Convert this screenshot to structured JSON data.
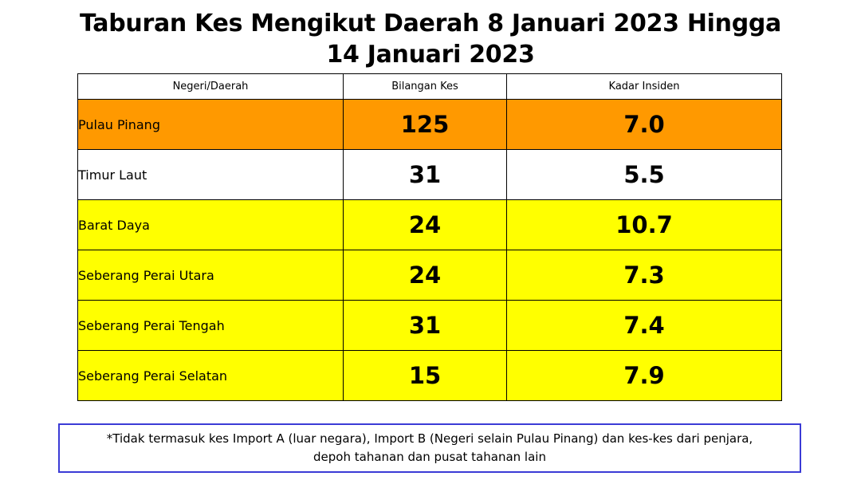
{
  "title": {
    "line1": "Taburan Kes Mengikut Daerah 8 Januari 2023 Hingga",
    "line2": "14 Januari 2023"
  },
  "table": {
    "headers": [
      "Negeri/Daerah",
      "Bilangan Kes",
      "Kadar Insiden"
    ],
    "rows": [
      {
        "name": "Pulau Pinang",
        "cases": "125",
        "rate": "7.0",
        "highlight": "#ff9900"
      },
      {
        "name": "Timur Laut",
        "cases": "31",
        "rate": "5.5",
        "highlight": "#ffffff"
      },
      {
        "name": "Barat Daya",
        "cases": "24",
        "rate": "10.7",
        "highlight": "#ffff00"
      },
      {
        "name": "Seberang Perai Utara",
        "cases": "24",
        "rate": "7.3",
        "highlight": "#ffff00"
      },
      {
        "name": "Seberang Perai Tengah",
        "cases": "31",
        "rate": "7.4",
        "highlight": "#ffff00"
      },
      {
        "name": "Seberang Perai Selatan",
        "cases": "15",
        "rate": "7.9",
        "highlight": "#ffff00"
      }
    ]
  },
  "note": {
    "line1": "*Tidak termasuk kes Import A (luar negara), Import B (Negeri selain Pulau Pinang) dan kes-kes dari penjara,",
    "line2": "depoh tahanan dan pusat tahanan lain"
  },
  "colors": {
    "state_row": "#ff9900",
    "district_highlight": "#ffff00",
    "note_border": "#3b3bd6"
  }
}
